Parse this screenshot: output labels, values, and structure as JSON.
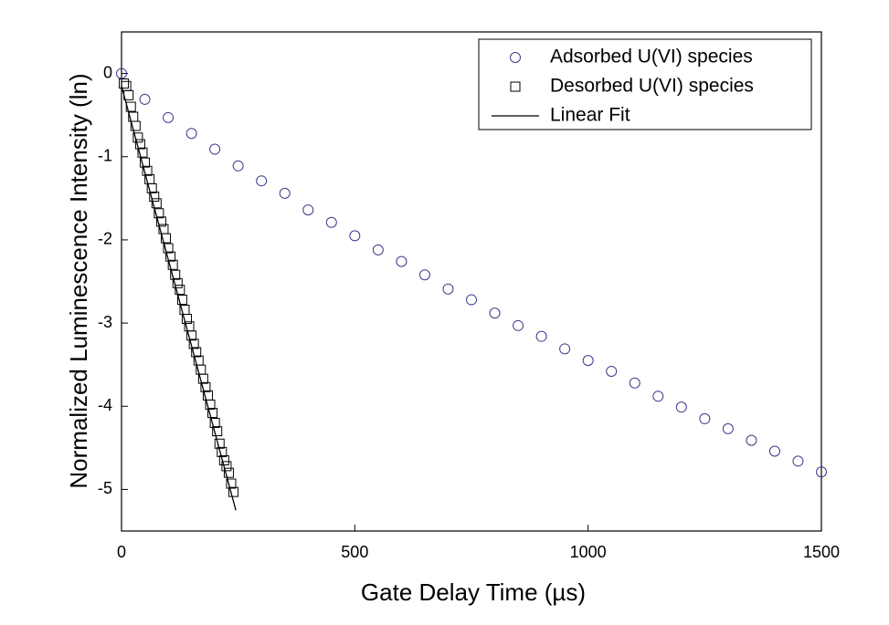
{
  "chart_data": {
    "type": "scatter",
    "xlabel": "Gate Delay Time (µs)",
    "ylabel": "Normalized Luminescence Intensity (ln)",
    "xlim": [
      0,
      1500
    ],
    "ylim": [
      -5.5,
      0.5
    ],
    "xticks": [
      0,
      500,
      1000,
      1500
    ],
    "yticks": [
      0,
      -1,
      -2,
      -3,
      -4,
      -5
    ],
    "legend": "upper right",
    "series": [
      {
        "name": "Adsorbed U(VI) species",
        "color": "#3a3a8c",
        "marker": "circle",
        "x": [
          0,
          50,
          100,
          150,
          200,
          250,
          300,
          350,
          400,
          450,
          500,
          550,
          600,
          650,
          700,
          750,
          800,
          850,
          900,
          950,
          1000,
          1050,
          1100,
          1150,
          1200,
          1250,
          1300,
          1350,
          1400,
          1450,
          1500
        ],
        "values": [
          0,
          -0.31,
          -0.53,
          -0.72,
          -0.91,
          -1.11,
          -1.29,
          -1.44,
          -1.64,
          -1.79,
          -1.95,
          -2.12,
          -2.26,
          -2.42,
          -2.59,
          -2.72,
          -2.88,
          -3.03,
          -3.16,
          -3.31,
          -3.45,
          -3.58,
          -3.72,
          -3.88,
          -4.01,
          -4.15,
          -4.27,
          -4.41,
          -4.54,
          -4.66,
          -4.79
        ]
      },
      {
        "name": "Desorbed U(VI) species",
        "color": "#000000",
        "marker": "square",
        "x": [
          5,
          10,
          15,
          20,
          25,
          30,
          35,
          40,
          45,
          50,
          55,
          60,
          65,
          70,
          75,
          80,
          85,
          90,
          95,
          100,
          105,
          110,
          115,
          120,
          125,
          130,
          135,
          140,
          145,
          150,
          155,
          160,
          165,
          170,
          175,
          180,
          185,
          190,
          195,
          200,
          205,
          210,
          215,
          220,
          225,
          230,
          235,
          240
        ],
        "values": [
          -0.12,
          -0.15,
          -0.26,
          -0.4,
          -0.52,
          -0.63,
          -0.77,
          -0.85,
          -0.95,
          -1.07,
          -1.17,
          -1.27,
          -1.38,
          -1.48,
          -1.56,
          -1.68,
          -1.78,
          -1.87,
          -1.98,
          -2.1,
          -2.2,
          -2.3,
          -2.42,
          -2.52,
          -2.6,
          -2.72,
          -2.84,
          -2.95,
          -3.04,
          -3.15,
          -3.25,
          -3.35,
          -3.45,
          -3.56,
          -3.67,
          -3.77,
          -3.87,
          -3.98,
          -4.08,
          -4.2,
          -4.3,
          -4.45,
          -4.55,
          -4.65,
          -4.72,
          -4.8,
          -4.93,
          -5.03
        ]
      },
      {
        "name": "Linear Fit",
        "color": "#000000",
        "marker": "line",
        "x": [
          0,
          245
        ],
        "values": [
          -0.15,
          -5.25
        ]
      }
    ]
  }
}
